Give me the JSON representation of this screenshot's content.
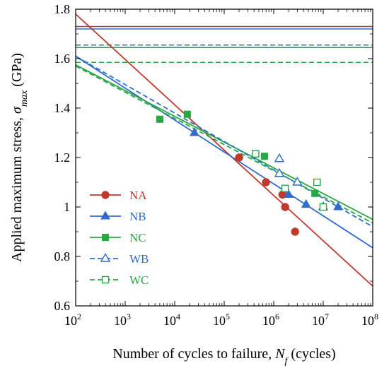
{
  "chart_data": {
    "type": "scatter",
    "xlabel": {
      "main": "Number of cycles to failure, ",
      "symbol": "N",
      "sub": "f",
      "unit": " (cycles)"
    },
    "ylabel": {
      "main": "Applied maximum stress, ",
      "symbol": "σ",
      "sub": "max",
      "unit": " (GPa)"
    },
    "xscale": "log",
    "xlim": [
      100,
      100000000
    ],
    "ylim": [
      0.6,
      1.8
    ],
    "x_ticks": [
      {
        "value": 100,
        "base": "10",
        "exp": "2"
      },
      {
        "value": 1000,
        "base": "10",
        "exp": "3"
      },
      {
        "value": 10000,
        "base": "10",
        "exp": "4"
      },
      {
        "value": 100000,
        "base": "10",
        "exp": "5"
      },
      {
        "value": 1000000,
        "base": "10",
        "exp": "6"
      },
      {
        "value": 10000000,
        "base": "10",
        "exp": "7"
      },
      {
        "value": 100000000,
        "base": "10",
        "exp": "8"
      }
    ],
    "y_ticks": [
      {
        "value": 0.6,
        "label": "0.6"
      },
      {
        "value": 0.8,
        "label": "0.8"
      },
      {
        "value": 1.0,
        "label": "1"
      },
      {
        "value": 1.2,
        "label": "1.2"
      },
      {
        "value": 1.4,
        "label": "1.4"
      },
      {
        "value": 1.6,
        "label": "1.6"
      },
      {
        "value": 1.8,
        "label": "1.8"
      }
    ],
    "legend_position": "lower-left",
    "series": [
      {
        "name": "NA",
        "key": "na",
        "color": "#c0392b",
        "marker": "circle",
        "filled": true,
        "dashed": false,
        "fit": [
          [
            100,
            1.78
          ],
          [
            100000000,
            0.68
          ]
        ],
        "uts": 1.73,
        "points": [
          [
            200000,
            1.2
          ],
          [
            700000,
            1.1
          ],
          [
            1500000,
            1.05
          ],
          [
            1700000,
            1.0
          ],
          [
            2700000,
            0.9
          ]
        ]
      },
      {
        "name": "NB",
        "key": "nb",
        "color": "#2e6ccf",
        "marker": "triangle",
        "filled": true,
        "dashed": false,
        "fit": [
          [
            100,
            1.61
          ],
          [
            100000000,
            0.835
          ]
        ],
        "uts": 1.72,
        "points": [
          [
            25000,
            1.3
          ],
          [
            2000000,
            1.05
          ],
          [
            4500000,
            1.01
          ],
          [
            20000000,
            1.0
          ]
        ]
      },
      {
        "name": "NC",
        "key": "nc",
        "color": "#27a844",
        "marker": "square",
        "filled": true,
        "dashed": false,
        "fit": [
          [
            100,
            1.575
          ],
          [
            100000000,
            0.95
          ]
        ],
        "uts": 1.645,
        "points": [
          [
            5000,
            1.355
          ],
          [
            18000,
            1.375
          ],
          [
            650000,
            1.205
          ],
          [
            6800000,
            1.055
          ]
        ]
      },
      {
        "name": "WB",
        "key": "wb",
        "color": "#2e6ccf",
        "marker": "triangle",
        "filled": false,
        "dashed": true,
        "fit": [
          [
            100,
            1.61
          ],
          [
            100000000,
            0.92
          ]
        ],
        "uts": 1.655,
        "points": [
          [
            1300000,
            1.195
          ],
          [
            1300000,
            1.135
          ],
          [
            3000000,
            1.1
          ],
          [
            10000000,
            1.0
          ]
        ]
      },
      {
        "name": "WC",
        "key": "wc",
        "color": "#27a844",
        "marker": "square",
        "filled": false,
        "dashed": true,
        "fit": [
          [
            100,
            1.57
          ],
          [
            100000000,
            0.935
          ]
        ],
        "uts": 1.585,
        "points": [
          [
            430000,
            1.215
          ],
          [
            1700000,
            1.075
          ],
          [
            7500000,
            1.1
          ],
          [
            10000000,
            1.0
          ]
        ]
      }
    ]
  }
}
